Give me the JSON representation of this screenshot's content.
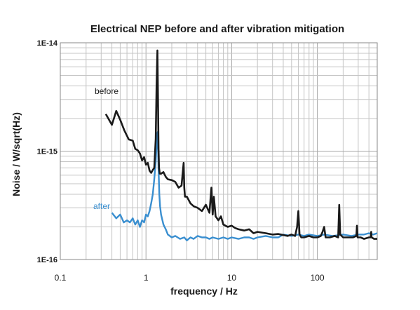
{
  "chart_data": {
    "type": "line",
    "title": "Electrical NEP before and after vibration mitigation",
    "xlabel": "frequency / Hz",
    "ylabel": "Noise  /  W/sqrt(Hz)",
    "xscale": "log",
    "yscale": "log",
    "xlim": [
      0.1,
      500
    ],
    "ylim": [
      1e-16,
      1e-14
    ],
    "grid": true,
    "x_ticks": [
      0.1,
      1,
      10,
      100
    ],
    "x_tick_labels": [
      "0.1",
      "1",
      "10",
      "100"
    ],
    "y_ticks": [
      1e-16,
      1e-15,
      1e-14
    ],
    "y_tick_labels": [
      "1E-16",
      "1E-15",
      "1E-14"
    ],
    "series": [
      {
        "name": "before",
        "color": "#1a1a1a",
        "label_position": "upper-left",
        "x": [
          0.34,
          0.4,
          0.45,
          0.5,
          0.56,
          0.63,
          0.7,
          0.75,
          0.8,
          0.85,
          0.9,
          0.95,
          1.0,
          1.05,
          1.1,
          1.15,
          1.2,
          1.25,
          1.3,
          1.33,
          1.36,
          1.38,
          1.4,
          1.42,
          1.45,
          1.5,
          1.6,
          1.7,
          1.8,
          2.0,
          2.2,
          2.4,
          2.6,
          2.75,
          2.8,
          2.85,
          3.0,
          3.3,
          3.6,
          4.0,
          4.5,
          5.0,
          5.5,
          5.8,
          6.0,
          6.2,
          6.5,
          7.0,
          7.5,
          8.0,
          9.0,
          10,
          11,
          12,
          14,
          16,
          18,
          20,
          25,
          30,
          35,
          40,
          45,
          50,
          55,
          58,
          60,
          62,
          65,
          70,
          80,
          90,
          100,
          110,
          115,
          120,
          125,
          140,
          160,
          175,
          180,
          185,
          200,
          230,
          260,
          285,
          290,
          295,
          320,
          350,
          400,
          420,
          425,
          430,
          460,
          500
        ],
        "y": [
          2.2e-15,
          1.75e-15,
          2.35e-15,
          1.95e-15,
          1.55e-15,
          1.28e-15,
          1.25e-15,
          1.05e-15,
          1.02e-15,
          9.5e-16,
          8.2e-16,
          8.8e-16,
          7.5e-16,
          7.8e-16,
          6.6e-16,
          6.3e-16,
          6.7e-16,
          7e-16,
          1.3e-15,
          4e-15,
          8.5e-15,
          3.2e-15,
          1.05e-15,
          7e-16,
          6.2e-16,
          6.2e-16,
          6.4e-16,
          5.8e-16,
          5.5e-16,
          5.4e-16,
          5.2e-16,
          4.6e-16,
          4.8e-16,
          7.8e-16,
          4.6e-16,
          3.8e-16,
          3.8e-16,
          3.3e-16,
          3.1e-16,
          3e-16,
          2.8e-16,
          3.2e-16,
          2.7e-16,
          4.6e-16,
          2.6e-16,
          3.8e-16,
          2.5e-16,
          2.3e-16,
          2.5e-16,
          2.1e-16,
          2e-16,
          2.05e-16,
          1.95e-16,
          1.9e-16,
          1.85e-16,
          1.9e-16,
          1.75e-16,
          1.8e-16,
          1.75e-16,
          1.7e-16,
          1.72e-16,
          1.68e-16,
          1.65e-16,
          1.7e-16,
          1.65e-16,
          2e-16,
          2.8e-16,
          1.7e-16,
          1.6e-16,
          1.6e-16,
          1.65e-16,
          1.6e-16,
          1.6e-16,
          1.65e-16,
          1.8e-16,
          2e-16,
          1.6e-16,
          1.6e-16,
          1.65e-16,
          1.6e-16,
          3.2e-16,
          1.7e-16,
          1.6e-16,
          1.6e-16,
          1.6e-16,
          1.65e-16,
          2.05e-16,
          1.6e-16,
          1.6e-16,
          1.55e-16,
          1.6e-16,
          1.6e-16,
          1.8e-16,
          1.6e-16,
          1.55e-16,
          1.55e-16
        ]
      },
      {
        "name": "after",
        "color": "#3a8fd0",
        "label_position": "lower-left",
        "x": [
          0.4,
          0.45,
          0.5,
          0.55,
          0.6,
          0.65,
          0.7,
          0.75,
          0.8,
          0.85,
          0.9,
          0.95,
          1.0,
          1.05,
          1.1,
          1.15,
          1.2,
          1.25,
          1.3,
          1.34,
          1.37,
          1.4,
          1.43,
          1.46,
          1.5,
          1.6,
          1.7,
          1.8,
          2.0,
          2.2,
          2.5,
          2.8,
          3.0,
          3.3,
          3.6,
          4.0,
          4.5,
          5.0,
          5.5,
          6.0,
          7.0,
          8.0,
          9.0,
          10,
          12,
          14,
          16,
          18,
          20,
          25,
          30,
          35,
          40,
          50,
          60,
          70,
          80,
          100,
          120,
          150,
          200,
          250,
          300,
          350,
          400,
          450,
          500
        ],
        "y": [
          2.7e-16,
          2.4e-16,
          2.6e-16,
          2.2e-16,
          2.3e-16,
          2.2e-16,
          2.4e-16,
          2.1e-16,
          2.3e-16,
          2e-16,
          2.3e-16,
          2.2e-16,
          2.6e-16,
          2.5e-16,
          2.8e-16,
          3.3e-16,
          4e-16,
          5.5e-16,
          8e-16,
          1.3e-15,
          1.5e-15,
          7e-16,
          4e-16,
          3.1e-16,
          2.6e-16,
          2.1e-16,
          1.9e-16,
          1.7e-16,
          1.6e-16,
          1.65e-16,
          1.55e-16,
          1.6e-16,
          1.5e-16,
          1.6e-16,
          1.55e-16,
          1.65e-16,
          1.6e-16,
          1.6e-16,
          1.55e-16,
          1.6e-16,
          1.55e-16,
          1.6e-16,
          1.55e-16,
          1.6e-16,
          1.55e-16,
          1.6e-16,
          1.6e-16,
          1.55e-16,
          1.6e-16,
          1.65e-16,
          1.6e-16,
          1.6e-16,
          1.7e-16,
          1.65e-16,
          1.7e-16,
          1.65e-16,
          1.7e-16,
          1.65e-16,
          1.7e-16,
          1.65e-16,
          1.7e-16,
          1.65e-16,
          1.7e-16,
          1.7e-16,
          1.75e-16,
          1.7e-16,
          1.75e-16
        ]
      }
    ]
  }
}
